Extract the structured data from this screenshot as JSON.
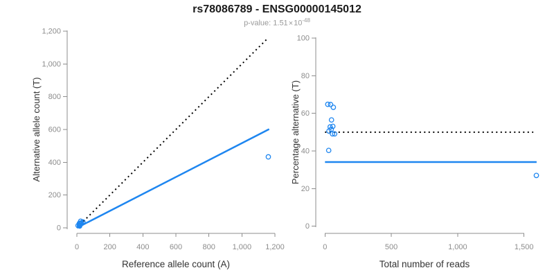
{
  "header": {
    "title": "rs78086789 - ENSG00000145012",
    "pvalue_prefix": "p-value: ",
    "pvalue_mantissa": "1.51",
    "pvalue_times": "×",
    "pvalue_base": "10",
    "pvalue_exponent": "-48"
  },
  "colors": {
    "accent_blue": "#1E86F0",
    "axis_gray": "#8C8C8C",
    "tick_label_gray": "#8C8C8C",
    "axis_title_color": "#333333",
    "title_color": "#1A1A1A",
    "subtitle_gray": "#999999",
    "dotted_line_black": "#000000"
  },
  "chart_data": [
    {
      "id": "allele-counts",
      "type": "scatter",
      "xlabel": "Reference allele count (A)",
      "ylabel": "Alternative allele count (T)",
      "xlim": [
        0,
        1200
      ],
      "ylim": [
        0,
        1200
      ],
      "xticks": [
        0,
        200,
        400,
        600,
        800,
        1000,
        1200
      ],
      "yticks": [
        0,
        200,
        400,
        600,
        800,
        1000,
        1200
      ],
      "grid": false,
      "legend": "none",
      "points": [
        [
          7,
          14
        ],
        [
          15,
          27
        ],
        [
          23,
          40
        ],
        [
          21,
          28
        ],
        [
          18,
          21
        ],
        [
          28,
          31
        ],
        [
          23,
          24
        ],
        [
          15,
          15
        ],
        [
          29,
          27
        ],
        [
          37,
          36
        ],
        [
          17,
          11
        ],
        [
          1160,
          433
        ]
      ],
      "identity_line": {
        "style": "dotted",
        "from": [
          0,
          0
        ],
        "to": [
          1160,
          1160
        ]
      },
      "trend_line": {
        "style": "solid",
        "from": [
          0,
          0
        ],
        "to": [
          1165,
          602
        ]
      }
    },
    {
      "id": "percentage-alternative",
      "type": "scatter",
      "xlabel": "Total number of reads",
      "ylabel": "Percentage alternative (T)",
      "xlim": [
        0,
        1680
      ],
      "ylim": [
        0,
        100
      ],
      "xticks": [
        0,
        500,
        1000,
        1500
      ],
      "yticks": [
        0,
        20,
        40,
        60,
        80,
        100
      ],
      "grid": false,
      "legend": "none",
      "points": [
        [
          21,
          64.8
        ],
        [
          42,
          64.7
        ],
        [
          63,
          63.2
        ],
        [
          49,
          56.5
        ],
        [
          39,
          52.8
        ],
        [
          59,
          53.1
        ],
        [
          47,
          51.5
        ],
        [
          30,
          50.6
        ],
        [
          56,
          49.1
        ],
        [
          73,
          49.1
        ],
        [
          28,
          40.3
        ],
        [
          1593,
          27
        ]
      ],
      "reference_line": {
        "style": "dotted",
        "y": 50,
        "x_from": 0,
        "x_to": 1570
      },
      "mean_line": {
        "style": "solid",
        "y": 34.1,
        "x_from": 0,
        "x_to": 1595
      }
    }
  ]
}
